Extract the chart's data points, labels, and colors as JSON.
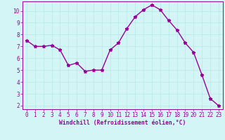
{
  "x": [
    0,
    1,
    2,
    3,
    4,
    5,
    6,
    7,
    8,
    9,
    10,
    11,
    12,
    13,
    14,
    15,
    16,
    17,
    18,
    19,
    20,
    21,
    22,
    23
  ],
  "y": [
    7.5,
    7.0,
    7.0,
    7.1,
    6.7,
    5.4,
    5.6,
    4.9,
    5.0,
    5.0,
    6.7,
    7.3,
    8.5,
    9.5,
    10.1,
    10.5,
    10.1,
    9.2,
    8.4,
    7.3,
    6.5,
    4.6,
    2.6,
    2.0
  ],
  "line_color": "#990099",
  "marker": "*",
  "xlabel": "Windchill (Refroidissement éolien,°C)",
  "xlim_min": -0.5,
  "xlim_max": 23.5,
  "ylim_min": 1.7,
  "ylim_max": 10.8,
  "yticks": [
    2,
    3,
    4,
    5,
    6,
    7,
    8,
    9,
    10
  ],
  "xticks": [
    0,
    1,
    2,
    3,
    4,
    5,
    6,
    7,
    8,
    9,
    10,
    11,
    12,
    13,
    14,
    15,
    16,
    17,
    18,
    19,
    20,
    21,
    22,
    23
  ],
  "bg_color": "#d4f5f5",
  "grid_color": "#b8e8e8",
  "label_color": "#990099",
  "line_width": 1.0,
  "marker_size": 3.5,
  "tick_fontsize": 5.5,
  "xlabel_fontsize": 5.8
}
